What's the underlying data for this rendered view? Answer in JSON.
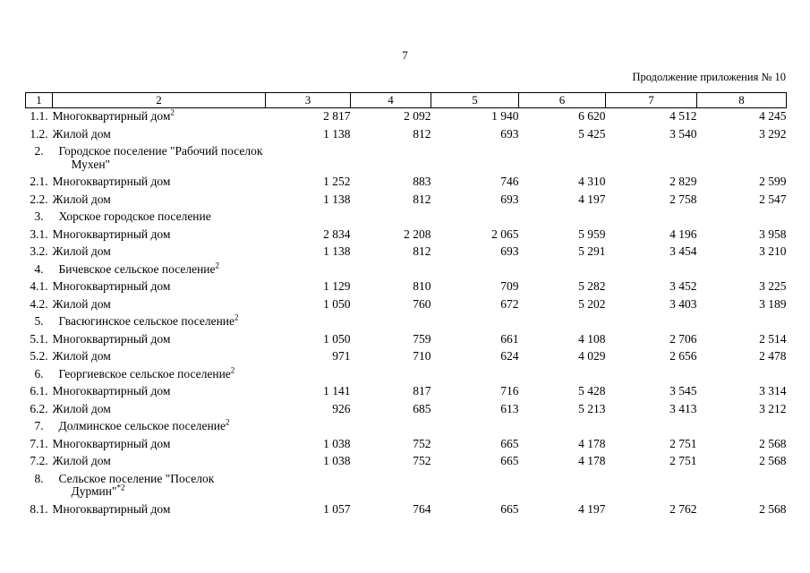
{
  "page": {
    "number": "7",
    "header_note": "Продолжение приложения № 10"
  },
  "table": {
    "column_headers": [
      "1",
      "2",
      "3",
      "4",
      "5",
      "6",
      "7",
      "8"
    ],
    "rows": [
      {
        "num": "1.1.",
        "label": "Многоквартирный дом",
        "sup": "2",
        "values": [
          "2 817",
          "2 092",
          "1 940",
          "6 620",
          "4 512",
          "4 245"
        ]
      },
      {
        "num": "1.2.",
        "label": "Жилой дом",
        "sup": "",
        "values": [
          "1 138",
          "812",
          "693",
          "5 425",
          "3 540",
          "3 292"
        ]
      },
      {
        "num": "2.",
        "label": "Городское поселение \"Рабочий поселок Мухен\"",
        "sup": "",
        "values": []
      },
      {
        "num": "2.1.",
        "label": "Многоквартирный дом",
        "sup": "",
        "values": [
          "1 252",
          "883",
          "746",
          "4 310",
          "2 829",
          "2 599"
        ]
      },
      {
        "num": "2.2.",
        "label": "Жилой дом",
        "sup": "",
        "values": [
          "1 138",
          "812",
          "693",
          "4 197",
          "2 758",
          "2 547"
        ]
      },
      {
        "num": "3.",
        "label": "Хорское городское поселение",
        "sup": "",
        "values": []
      },
      {
        "num": "3.1.",
        "label": "Многоквартирный дом",
        "sup": "",
        "values": [
          "2 834",
          "2 208",
          "2 065",
          "5 959",
          "4 196",
          "3 958"
        ]
      },
      {
        "num": "3.2.",
        "label": "Жилой дом",
        "sup": "",
        "values": [
          "1 138",
          "812",
          "693",
          "5 291",
          "3 454",
          "3 210"
        ]
      },
      {
        "num": "4.",
        "label": "Бичевское сельское поселение",
        "sup": "2",
        "values": []
      },
      {
        "num": "4.1.",
        "label": "Многоквартирный дом",
        "sup": "",
        "values": [
          "1 129",
          "810",
          "709",
          "5 282",
          "3 452",
          "3 225"
        ]
      },
      {
        "num": "4.2.",
        "label": "Жилой дом",
        "sup": "",
        "values": [
          "1 050",
          "760",
          "672",
          "5 202",
          "3 403",
          "3 189"
        ]
      },
      {
        "num": "5.",
        "label": "Гвасюгинское сельское поселение",
        "sup": "2",
        "values": []
      },
      {
        "num": "5.1.",
        "label": "Многоквартирный дом",
        "sup": "",
        "values": [
          "1 050",
          "759",
          "661",
          "4 108",
          "2 706",
          "2 514"
        ]
      },
      {
        "num": "5.2.",
        "label": "Жилой дом",
        "sup": "",
        "values": [
          "971",
          "710",
          "624",
          "4 029",
          "2 656",
          "2 478"
        ]
      },
      {
        "num": "6.",
        "label": "Георгиевское сельское поселение",
        "sup": "2",
        "values": []
      },
      {
        "num": "6.1.",
        "label": "Многоквартирный дом",
        "sup": "",
        "values": [
          "1 141",
          "817",
          "716",
          "5 428",
          "3 545",
          "3 314"
        ]
      },
      {
        "num": "6.2.",
        "label": "Жилой дом",
        "sup": "",
        "values": [
          "926",
          "685",
          "613",
          "5 213",
          "3 413",
          "3 212"
        ]
      },
      {
        "num": "7.",
        "label": "Долминское сельское поселение",
        "sup": "2",
        "values": []
      },
      {
        "num": "7.1.",
        "label": "Многоквартирный дом",
        "sup": "",
        "values": [
          "1 038",
          "752",
          "665",
          "4 178",
          "2 751",
          "2 568"
        ]
      },
      {
        "num": "7.2.",
        "label": "Жилой дом",
        "sup": "",
        "values": [
          "1 038",
          "752",
          "665",
          "4 178",
          "2 751",
          "2 568"
        ]
      },
      {
        "num": "8.",
        "label": "Сельское поселение \"Поселок Дурмин\"",
        "sup": "*2",
        "values": []
      },
      {
        "num": "8.1.",
        "label": "Многоквартирный дом",
        "sup": "",
        "values": [
          "1 057",
          "764",
          "665",
          "4 197",
          "2 762",
          "2 568"
        ]
      }
    ]
  }
}
